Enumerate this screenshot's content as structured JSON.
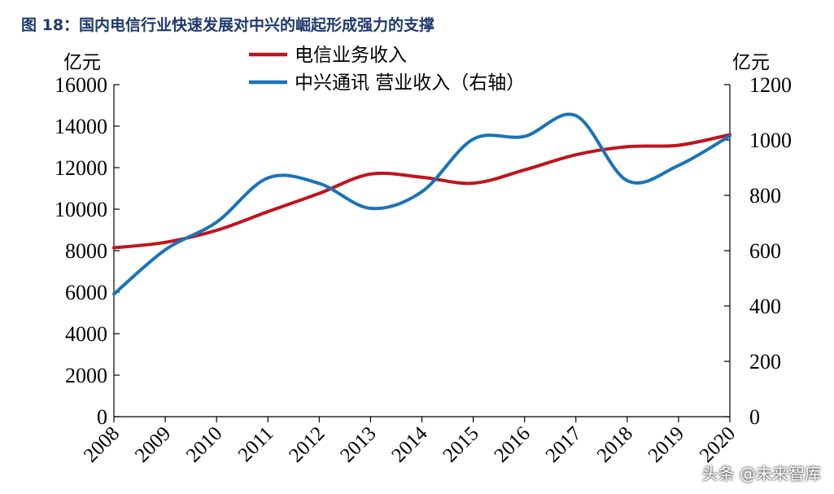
{
  "title": "图 18：国内电信行业快速发展对中兴的崛起形成强力的支撑",
  "watermark": "头条 @未来智库",
  "colors": {
    "telecom": "#c0141c",
    "zte": "#1a73b8"
  },
  "chart_data": {
    "type": "line",
    "x": [
      "2008",
      "2009",
      "2010",
      "2011",
      "2012",
      "2013",
      "2014",
      "2015",
      "2016",
      "2017",
      "2018",
      "2019",
      "2020"
    ],
    "left_axis": {
      "unit": "亿元",
      "min": 0,
      "max": 16000,
      "ticks": [
        "0",
        "2000",
        "4000",
        "6000",
        "8000",
        "10000",
        "12000",
        "14000",
        "16000"
      ]
    },
    "right_axis": {
      "unit": "亿元",
      "min": 0,
      "max": 1200,
      "ticks": [
        "0",
        "200",
        "400",
        "600",
        "800",
        "1000",
        "1200"
      ]
    },
    "legend_position": "top-center",
    "series": [
      {
        "name": "电信业务收入",
        "axis": "left",
        "color": "#c0141c",
        "values": [
          8140,
          8400,
          8980,
          9880,
          10760,
          11690,
          11540,
          11250,
          11890,
          12620,
          13010,
          13080,
          13590
        ]
      },
      {
        "name": "中兴通讯 营业收入（右轴）",
        "axis": "right",
        "color": "#1a73b8",
        "values": [
          443,
          603,
          703,
          863,
          843,
          753,
          813,
          1003,
          1013,
          1088,
          853,
          908,
          1015
        ]
      }
    ]
  }
}
